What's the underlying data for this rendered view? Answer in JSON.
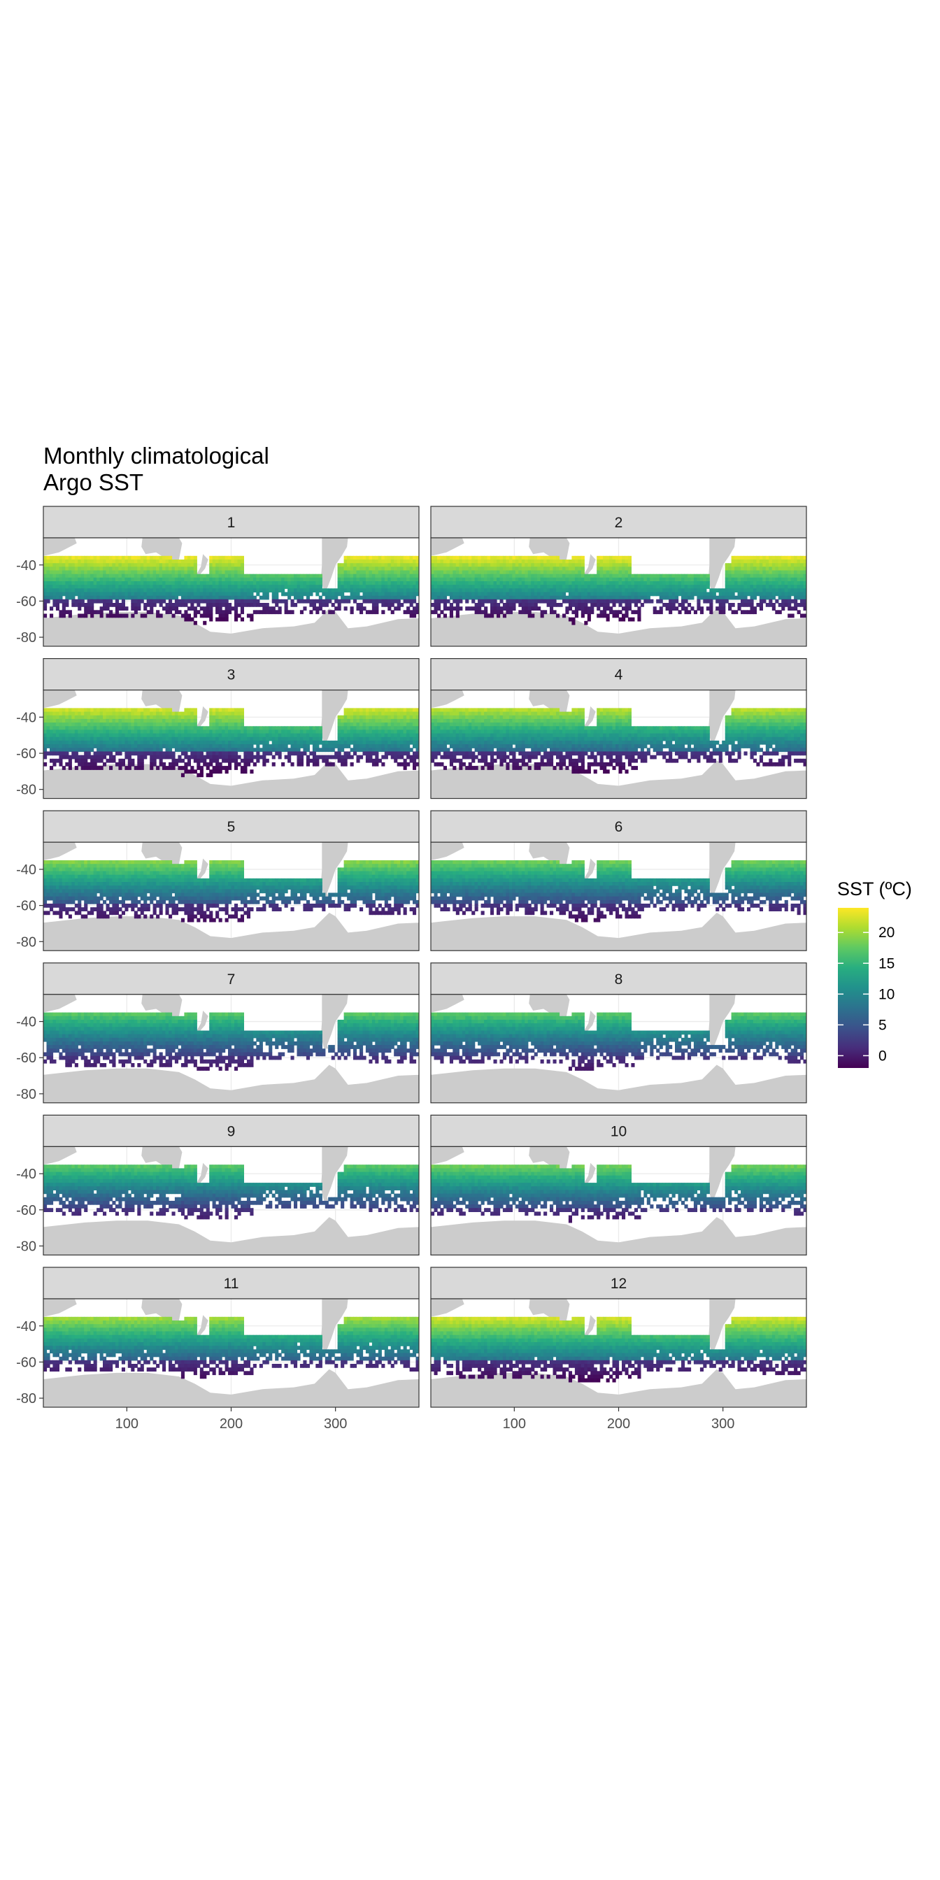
{
  "title_lines": [
    "Monthly climatological",
    "Argo SST"
  ],
  "colors": {
    "land": "#cccccc",
    "panel_border": "#333333",
    "strip_fill": "#d9d9d9",
    "grid": "#ebebeb",
    "viridis": [
      "#440154",
      "#472d7b",
      "#3b528b",
      "#2c728e",
      "#21918c",
      "#28ae80",
      "#5ec962",
      "#addc30",
      "#fde725"
    ]
  },
  "chart_data": {
    "type": "heatmap",
    "title": "Monthly climatological Argo SST",
    "facet_variable": "month",
    "facets": [
      "1",
      "2",
      "3",
      "4",
      "5",
      "6",
      "7",
      "8",
      "9",
      "10",
      "11",
      "12"
    ],
    "x": {
      "ticks": [
        100,
        200,
        300
      ],
      "tick_labels": [
        "100",
        "200",
        "300"
      ],
      "range": [
        20,
        380
      ]
    },
    "y": {
      "ticks": [
        -40,
        -60,
        -80
      ],
      "tick_labels": [
        "-40",
        "-60",
        "-80"
      ],
      "range": [
        -85,
        -25
      ]
    },
    "grid": true,
    "color_scale": {
      "name": "SST (ºC)",
      "palette": "viridis",
      "range": [
        -2,
        24
      ],
      "breaks": [
        0,
        5,
        10,
        15,
        20
      ],
      "break_labels": [
        "0",
        "5",
        "10",
        "15",
        "20"
      ]
    },
    "legend_position": "right",
    "domain": {
      "north_lat": -35,
      "north_lat_pacific": -45,
      "pacific_lon_range": [
        210,
        290
      ],
      "lat_step": 2,
      "lon_step": 3
    },
    "monthly_summary": [
      {
        "month": 1,
        "max_sst": 23,
        "south_edge_lat": -67,
        "ice_edge_lat": -70
      },
      {
        "month": 2,
        "max_sst": 23,
        "south_edge_lat": -67,
        "ice_edge_lat": -72
      },
      {
        "month": 3,
        "max_sst": 22,
        "south_edge_lat": -67,
        "ice_edge_lat": -70
      },
      {
        "month": 4,
        "max_sst": 21,
        "south_edge_lat": -66,
        "ice_edge_lat": -68
      },
      {
        "month": 5,
        "max_sst": 19,
        "south_edge_lat": -64,
        "ice_edge_lat": -66
      },
      {
        "month": 6,
        "max_sst": 18,
        "south_edge_lat": -63,
        "ice_edge_lat": -64
      },
      {
        "month": 7,
        "max_sst": 17,
        "south_edge_lat": -62,
        "ice_edge_lat": -62
      },
      {
        "month": 8,
        "max_sst": 17,
        "south_edge_lat": -61,
        "ice_edge_lat": -61
      },
      {
        "month": 9,
        "max_sst": 17,
        "south_edge_lat": -60,
        "ice_edge_lat": -60
      },
      {
        "month": 10,
        "max_sst": 18,
        "south_edge_lat": -61,
        "ice_edge_lat": -61
      },
      {
        "month": 11,
        "max_sst": 20,
        "south_edge_lat": -63,
        "ice_edge_lat": -63
      },
      {
        "month": 12,
        "max_sst": 22,
        "south_edge_lat": -66,
        "ice_edge_lat": -66
      }
    ]
  }
}
